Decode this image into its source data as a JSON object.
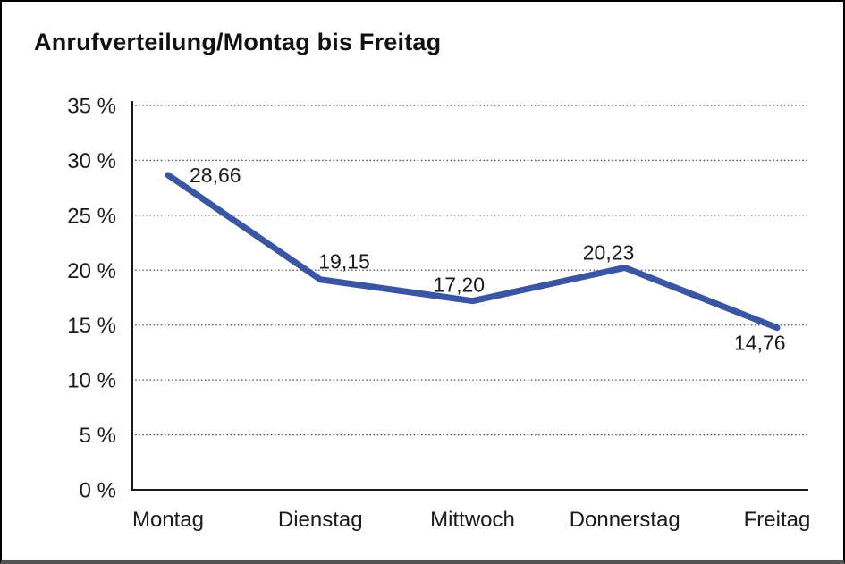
{
  "chart_data": {
    "type": "line",
    "title": "Anrufverteilung/Montag bis Freitag",
    "categories": [
      "Montag",
      "Dienstag",
      "Mittwoch",
      "Donnerstag",
      "Freitag"
    ],
    "values": [
      28.66,
      19.15,
      17.2,
      20.23,
      14.76
    ],
    "value_labels": [
      "28,66",
      "19,15",
      "17,20",
      "20,23",
      "14,76"
    ],
    "series_name": "Anrufverteilung",
    "xlabel": "",
    "ylabel": "",
    "ylim": [
      0,
      35
    ],
    "ytick_step": 5,
    "ytick_labels": [
      "0 %",
      "5 %",
      "10 %",
      "15 %",
      "20 %",
      "25 %",
      "30 %",
      "35 %"
    ],
    "grid": "horizontal-dotted",
    "legend_position": "none",
    "colors": {
      "line": "#3A55A3",
      "axis": "#1a1a1a",
      "grid": "#4d4d4d",
      "text": "#1a1a1a",
      "background": "#ffffff"
    }
  }
}
